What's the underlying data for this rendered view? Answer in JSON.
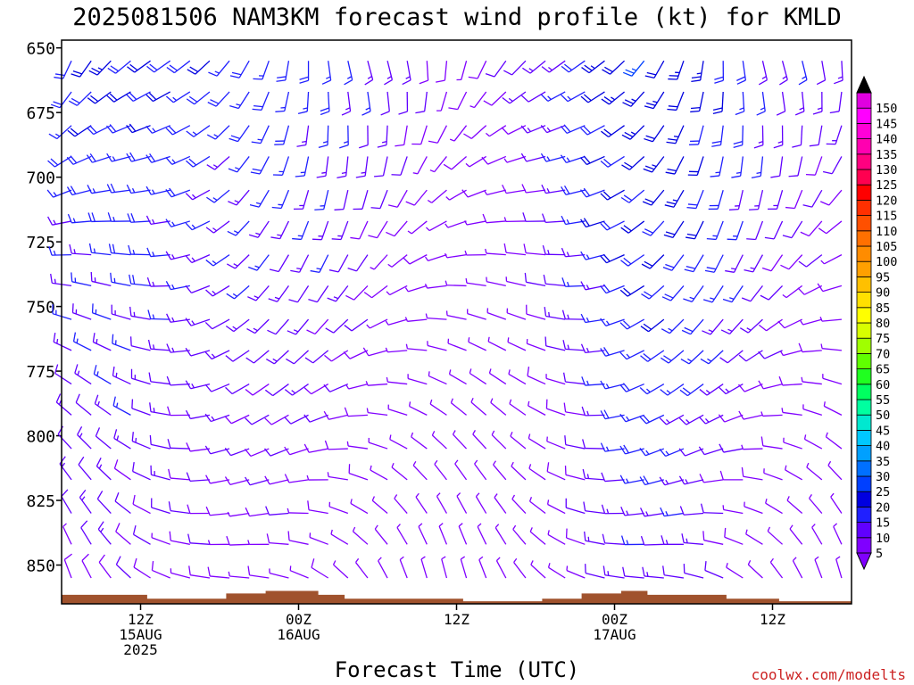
{
  "title": "2025081506 NAM3KM forecast wind profile (kt) for KMLD",
  "watermark": "coolwx.com/modelts",
  "chart_data": {
    "type": "wind-barb-time-height",
    "title": "2025081506 NAM3KM forecast wind profile (kt) for KMLD",
    "xlabel": "Forecast Time (UTC)",
    "ylabel": "",
    "y_ticks": [
      650,
      675,
      700,
      725,
      750,
      775,
      800,
      825,
      850
    ],
    "y_range_hPa": [
      647,
      865
    ],
    "x_range_hours_from_start": [
      0,
      60
    ],
    "x_tick_labels": [
      {
        "hour": 6,
        "lines": [
          "12Z",
          "15AUG",
          "2025"
        ]
      },
      {
        "hour": 18,
        "lines": [
          "00Z",
          "16AUG"
        ]
      },
      {
        "hour": 30,
        "lines": [
          "12Z"
        ]
      },
      {
        "hour": 42,
        "lines": [
          "00Z",
          "17AUG"
        ]
      },
      {
        "hour": 54,
        "lines": [
          "12Z"
        ]
      }
    ],
    "barb_levels_hPa": [
      655,
      667,
      680,
      692,
      705,
      717,
      730,
      742,
      755,
      767,
      780,
      792,
      805,
      817,
      830,
      842,
      855
    ],
    "barb_hours_step": 1.5,
    "colorbar": {
      "values": [
        5,
        10,
        15,
        20,
        25,
        30,
        35,
        40,
        45,
        50,
        55,
        60,
        65,
        70,
        75,
        80,
        85,
        90,
        95,
        100,
        105,
        110,
        115,
        120,
        125,
        130,
        135,
        140,
        145,
        150
      ],
      "colors": [
        "#8000ff",
        "#6000ff",
        "#2020ff",
        "#0000e0",
        "#0040ff",
        "#0070ff",
        "#00a0ff",
        "#00c8ff",
        "#00e8d0",
        "#00ffa0",
        "#00ff60",
        "#20ff20",
        "#60ff00",
        "#a0ff00",
        "#d8ff00",
        "#ffff00",
        "#ffe000",
        "#ffc000",
        "#ffa000",
        "#ff8c00",
        "#ff7000",
        "#ff5000",
        "#ff3000",
        "#ff0000",
        "#ff0050",
        "#ff0080",
        "#ff00b0",
        "#ff00d8",
        "#ff00ff",
        "#e000e0"
      ]
    },
    "terrain_color": "#a0522d",
    "terrain": [
      [
        0,
        861.5
      ],
      [
        6.5,
        861.5
      ],
      [
        6.5,
        863
      ],
      [
        12.5,
        863
      ],
      [
        12.5,
        861
      ],
      [
        15.5,
        861
      ],
      [
        15.5,
        860
      ],
      [
        19.5,
        860
      ],
      [
        19.5,
        861.5
      ],
      [
        21.5,
        861.5
      ],
      [
        21.5,
        863
      ],
      [
        30.5,
        863
      ],
      [
        30.5,
        864
      ],
      [
        36.5,
        864
      ],
      [
        36.5,
        863
      ],
      [
        39.5,
        863
      ],
      [
        39.5,
        861
      ],
      [
        42.5,
        861
      ],
      [
        42.5,
        860
      ],
      [
        44.5,
        860
      ],
      [
        44.5,
        861.5
      ],
      [
        50.5,
        861.5
      ],
      [
        50.5,
        863
      ],
      [
        54.5,
        863
      ],
      [
        54.5,
        864
      ],
      [
        60,
        864
      ]
    ]
  }
}
